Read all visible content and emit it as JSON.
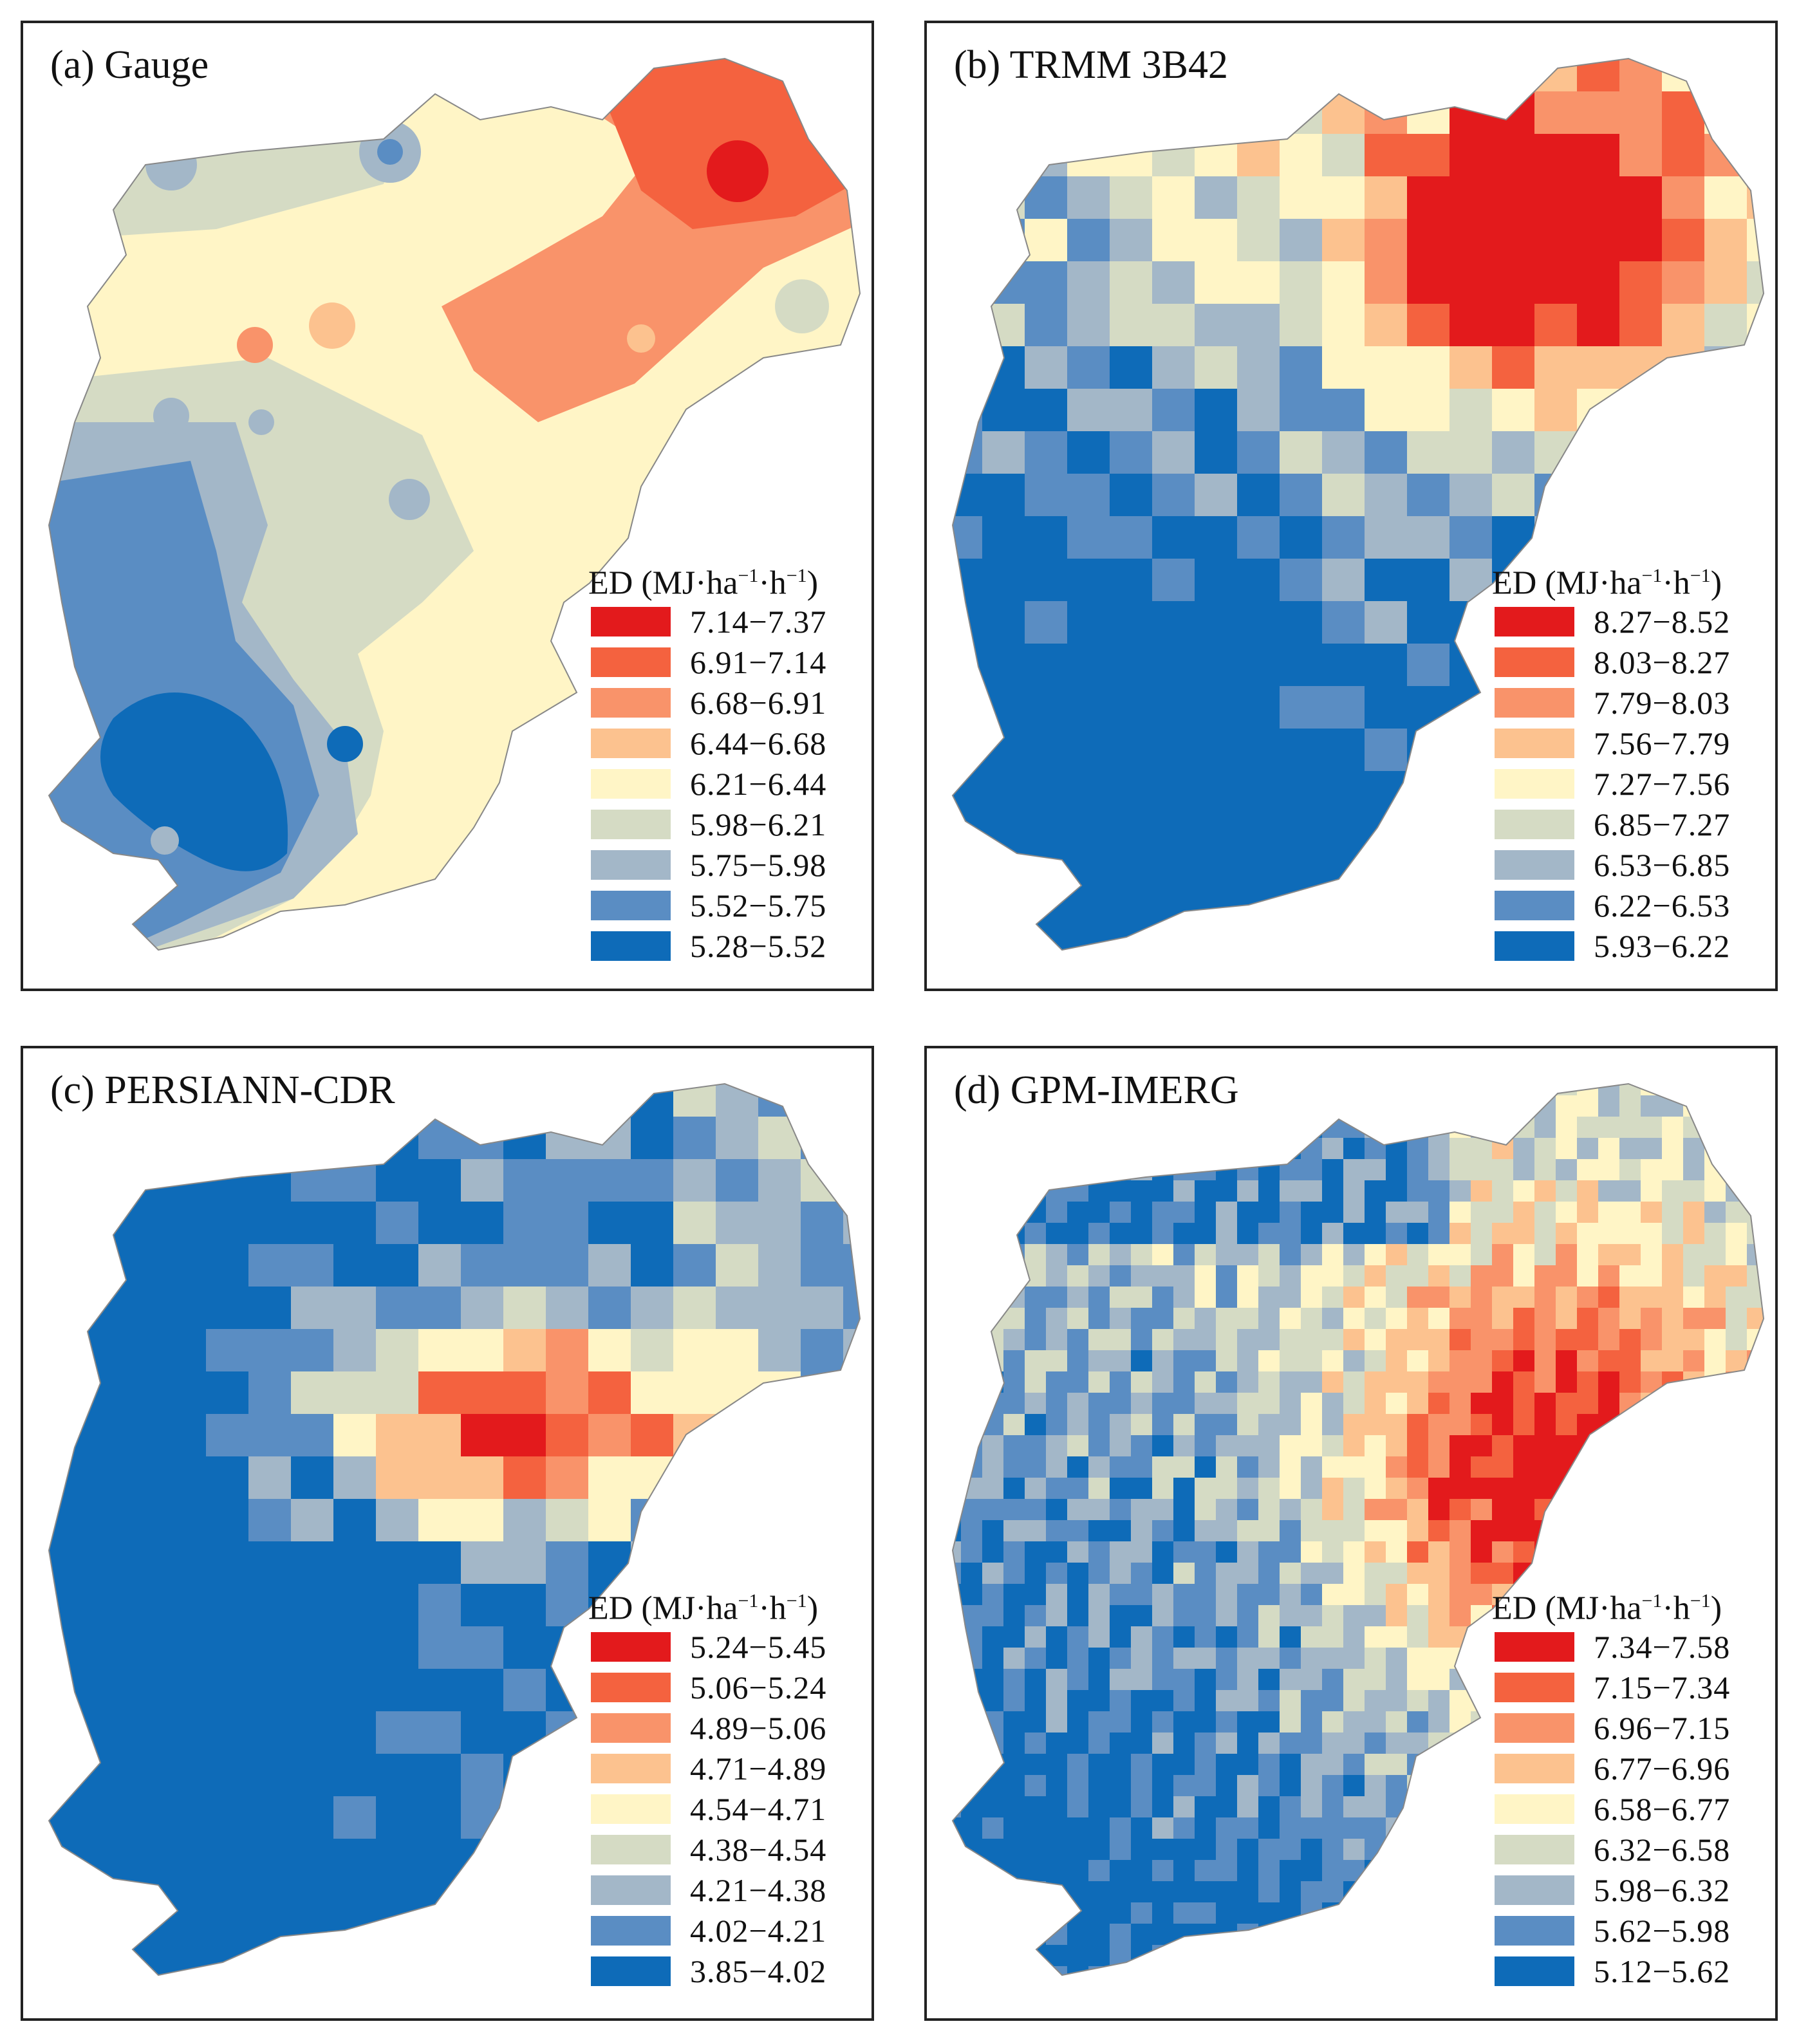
{
  "legend": {
    "title_prefix": "ED (MJ·ha",
    "sup1": "−1",
    "mid": "·h",
    "sup2": "−1",
    "close": ")"
  },
  "colors": [
    "#e31a1c",
    "#f4623f",
    "#f9936a",
    "#fcc28f",
    "#fff5c6",
    "#d5dbc4",
    "#a3b7c8",
    "#5a8dc3",
    "#0e6bb8"
  ],
  "panels": [
    {
      "id": "a",
      "title": "(a) Gauge",
      "ranges": [
        "7.14−7.37",
        "6.91−7.14",
        "6.68−6.91",
        "6.44−6.68",
        "6.21−6.44",
        "5.98−6.21",
        "5.75−5.98",
        "5.52−5.75",
        "5.28−5.52"
      ]
    },
    {
      "id": "b",
      "title": "(b) TRMM 3B42",
      "ranges": [
        "8.27−8.52",
        "8.03−8.27",
        "7.79−8.03",
        "7.56−7.79",
        "7.27−7.56",
        "6.85−7.27",
        "6.53−6.85",
        "6.22−6.53",
        "5.93−6.22"
      ]
    },
    {
      "id": "c",
      "title": "(c) PERSIANN-CDR",
      "ranges": [
        "5.24−5.45",
        "5.06−5.24",
        "4.89−5.06",
        "4.71−4.89",
        "4.54−4.71",
        "4.38−4.54",
        "4.21−4.38",
        "4.02−4.21",
        "3.85−4.02"
      ]
    },
    {
      "id": "d",
      "title": "(d) GPM-IMERG",
      "ranges": [
        "7.34−7.58",
        "7.15−7.34",
        "6.96−7.15",
        "6.77−6.96",
        "6.58−6.77",
        "6.32−6.58",
        "5.98−6.32",
        "5.62−5.98",
        "5.12−5.62"
      ]
    }
  ]
}
